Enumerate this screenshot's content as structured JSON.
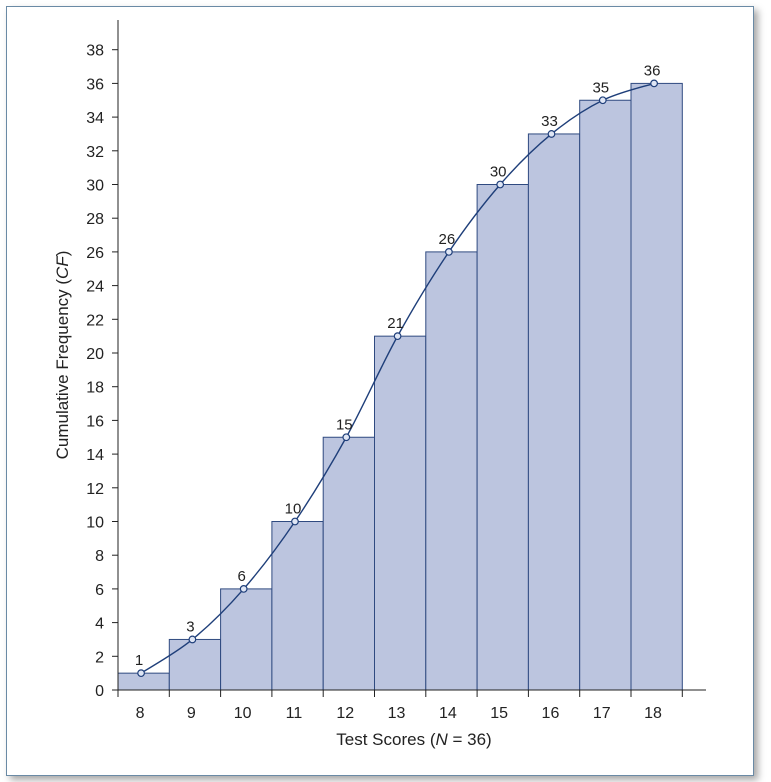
{
  "chart_data": {
    "type": "bar",
    "overlay": "line",
    "categories": [
      "8",
      "9",
      "10",
      "11",
      "12",
      "13",
      "14",
      "15",
      "16",
      "17",
      "18"
    ],
    "values": [
      1,
      3,
      6,
      10,
      15,
      21,
      26,
      30,
      33,
      35,
      36
    ],
    "data_labels": [
      "1",
      "3",
      "6",
      "10",
      "15",
      "21",
      "26",
      "30",
      "33",
      "35",
      "36"
    ],
    "xlabel": "Test Scores (N = 36)",
    "xlabel_parts": {
      "pre": "Test Scores (",
      "italic": "N",
      "post": " = 36)"
    },
    "ylabel": "Cumulative Frequency (CF)",
    "ylabel_parts": {
      "pre": "Cumulative Frequency (",
      "italic": "CF",
      "post": ")"
    },
    "ylim": [
      0,
      39
    ],
    "yticks": [
      "0",
      "2",
      "4",
      "6",
      "8",
      "10",
      "12",
      "14",
      "16",
      "18",
      "20",
      "22",
      "24",
      "26",
      "28",
      "30",
      "32",
      "34",
      "36",
      "38"
    ],
    "grid": false,
    "legend": "none",
    "colors": {
      "bar_fill": "#bcc5df",
      "bar_stroke": "#2f4a80",
      "line": "#1f3f7a",
      "point_fill": "#dfe6f5"
    }
  }
}
